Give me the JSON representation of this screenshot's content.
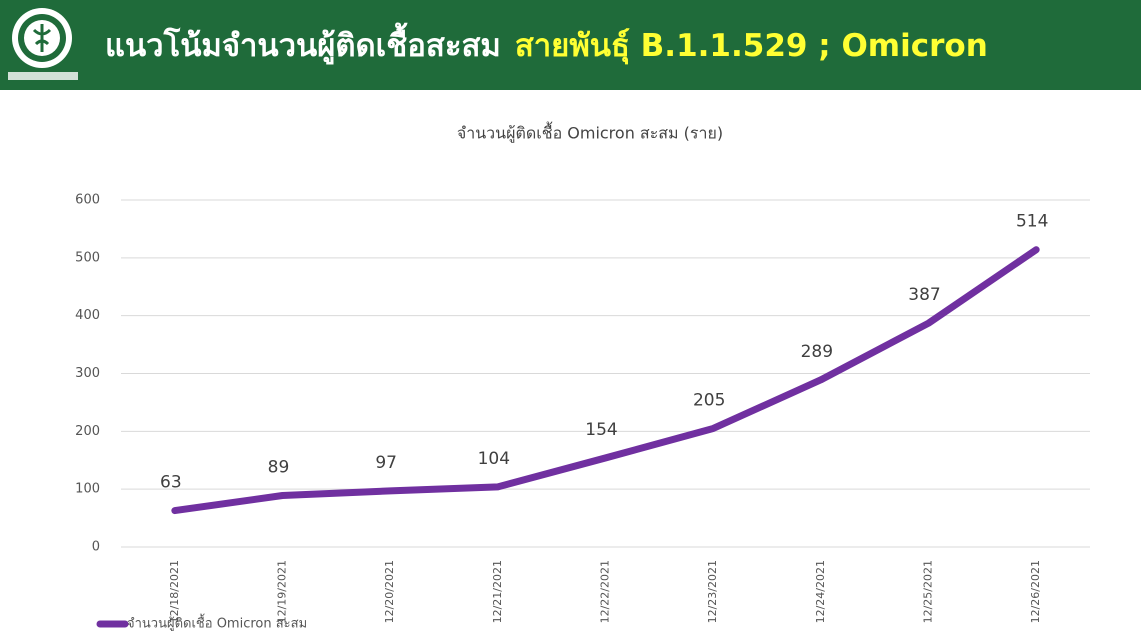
{
  "header": {
    "title_main": "แนวโน้มจำนวนผู้ติดเชื้อสะสม",
    "title_highlight": "สายพันธุ์ B.1.1.529 ; Omicron"
  },
  "chart_data": {
    "type": "line",
    "title": "จำนวนผู้ติดเชื้อ Omicron สะสม (ราย)",
    "categories": [
      "12/18/2021",
      "12/19/2021",
      "12/20/2021",
      "12/21/2021",
      "12/22/2021",
      "12/23/2021",
      "12/24/2021",
      "12/25/2021",
      "12/26/2021"
    ],
    "series": [
      {
        "name": "จำนวนผู้ติดเชื้อ Omicron สะสม",
        "color": "#7030a0",
        "values": [
          63,
          89,
          97,
          104,
          154,
          205,
          289,
          387,
          514
        ]
      }
    ],
    "ylim": [
      0,
      600
    ],
    "yticks": [
      0,
      100,
      200,
      300,
      400,
      500,
      600
    ],
    "grid": true,
    "legend": "bottom-left"
  }
}
